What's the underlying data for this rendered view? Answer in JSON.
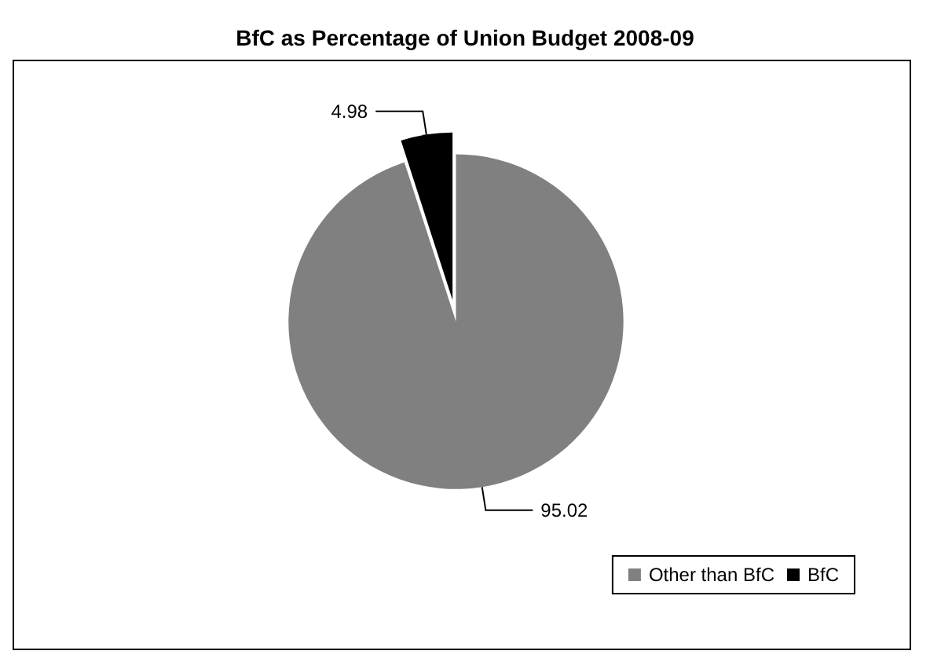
{
  "chart_data": {
    "type": "pie",
    "title": "BfC as Percentage of Union Budget 2008-09",
    "categories": [
      "Other than BfC",
      "BfC"
    ],
    "values": [
      95.02,
      4.98
    ],
    "colors": [
      "#808080",
      "#000000"
    ],
    "data_labels": true,
    "legend": "bottom right"
  }
}
